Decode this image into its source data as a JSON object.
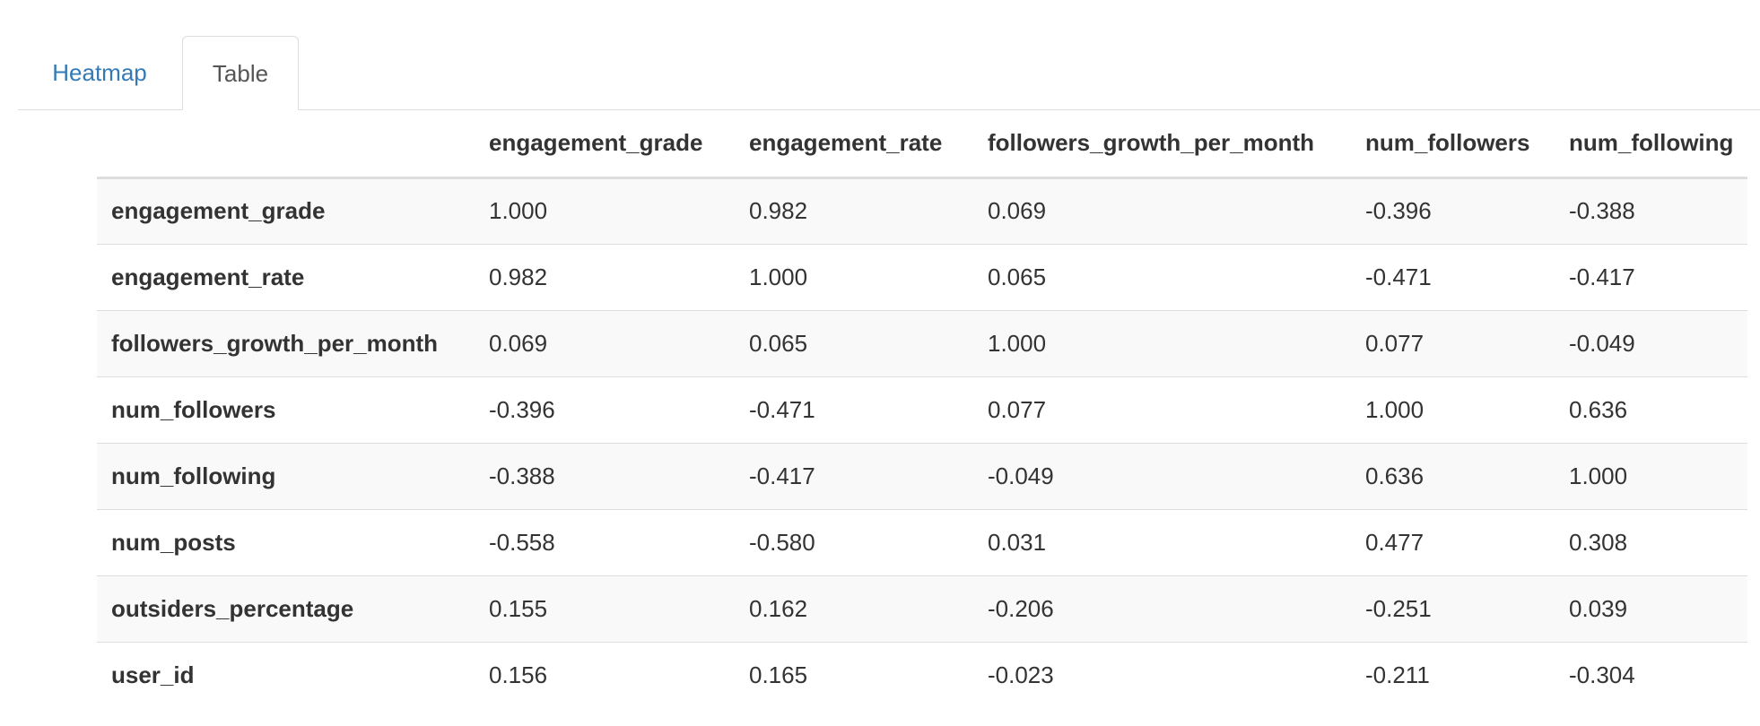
{
  "tabs": [
    {
      "label": "Heatmap",
      "active": false
    },
    {
      "label": "Table",
      "active": true
    }
  ],
  "colors": {
    "link": "#337ab7",
    "text": "#333333",
    "stripe": "#f9f9f9",
    "border": "#dddddd"
  },
  "table": {
    "columns": [
      "",
      "engagement_grade",
      "engagement_rate",
      "followers_growth_per_month",
      "num_followers",
      "num_following"
    ],
    "rows": [
      {
        "label": "engagement_grade",
        "values": [
          "1.000",
          "0.982",
          "0.069",
          "-0.396",
          "-0.388"
        ]
      },
      {
        "label": "engagement_rate",
        "values": [
          "0.982",
          "1.000",
          "0.065",
          "-0.471",
          "-0.417"
        ]
      },
      {
        "label": "followers_growth_per_month",
        "values": [
          "0.069",
          "0.065",
          "1.000",
          "0.077",
          "-0.049"
        ]
      },
      {
        "label": "num_followers",
        "values": [
          "-0.396",
          "-0.471",
          "0.077",
          "1.000",
          "0.636"
        ]
      },
      {
        "label": "num_following",
        "values": [
          "-0.388",
          "-0.417",
          "-0.049",
          "0.636",
          "1.000"
        ]
      },
      {
        "label": "num_posts",
        "values": [
          "-0.558",
          "-0.580",
          "0.031",
          "0.477",
          "0.308"
        ]
      },
      {
        "label": "outsiders_percentage",
        "values": [
          "0.155",
          "0.162",
          "-0.206",
          "-0.251",
          "0.039"
        ]
      },
      {
        "label": "user_id",
        "values": [
          "0.156",
          "0.165",
          "-0.023",
          "-0.211",
          "-0.304"
        ]
      }
    ]
  }
}
